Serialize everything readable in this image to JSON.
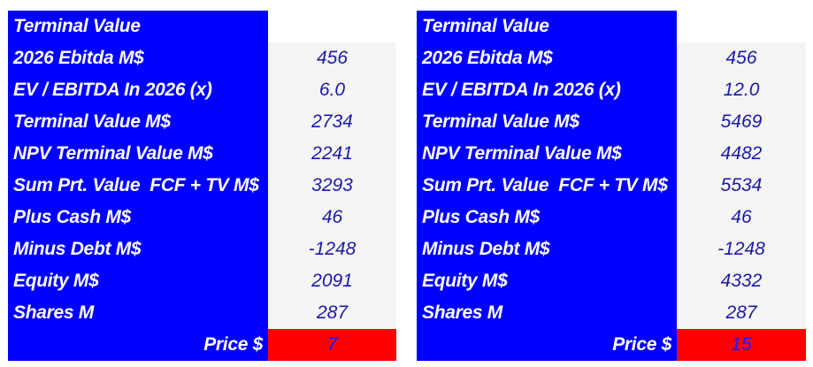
{
  "tables": [
    {
      "header": "Terminal Value",
      "rows": [
        {
          "label": "2026 Ebitda M$",
          "value": "456"
        },
        {
          "label": "EV / EBITDA In 2026 (x)",
          "value": "6.0"
        },
        {
          "label": "Terminal Value M$",
          "value": "2734"
        },
        {
          "label": "NPV Terminal Value M$",
          "value": "2241"
        },
        {
          "label": "Sum Prt. Value  FCF + TV M$",
          "value": "3293"
        },
        {
          "label": "Plus Cash M$",
          "value": "46"
        },
        {
          "label": "Minus Debt M$",
          "value": "-1248"
        },
        {
          "label": "Equity M$",
          "value": "2091"
        },
        {
          "label": "Shares M",
          "value": "287"
        }
      ],
      "price_label": "Price $",
      "price_value": "7"
    },
    {
      "header": "Terminal Value",
      "rows": [
        {
          "label": "2026 Ebitda M$",
          "value": "456"
        },
        {
          "label": "EV / EBITDA In 2026 (x)",
          "value": "12.0"
        },
        {
          "label": "Terminal Value M$",
          "value": "5469"
        },
        {
          "label": "NPV Terminal Value M$",
          "value": "4482"
        },
        {
          "label": "Sum Prt. Value  FCF + TV M$",
          "value": "5534"
        },
        {
          "label": "Plus Cash M$",
          "value": "46"
        },
        {
          "label": "Minus Debt M$",
          "value": "-1248"
        },
        {
          "label": "Equity M$",
          "value": "4332"
        },
        {
          "label": "Shares M",
          "value": "287"
        }
      ],
      "price_label": "Price $",
      "price_value": "15"
    }
  ],
  "colors": {
    "label_bg": "#0000ff",
    "label_text": "#ffffff",
    "value_bg": "#f5f5f5",
    "value_text": "#1a1aa8",
    "price_bg": "#ff0000"
  }
}
